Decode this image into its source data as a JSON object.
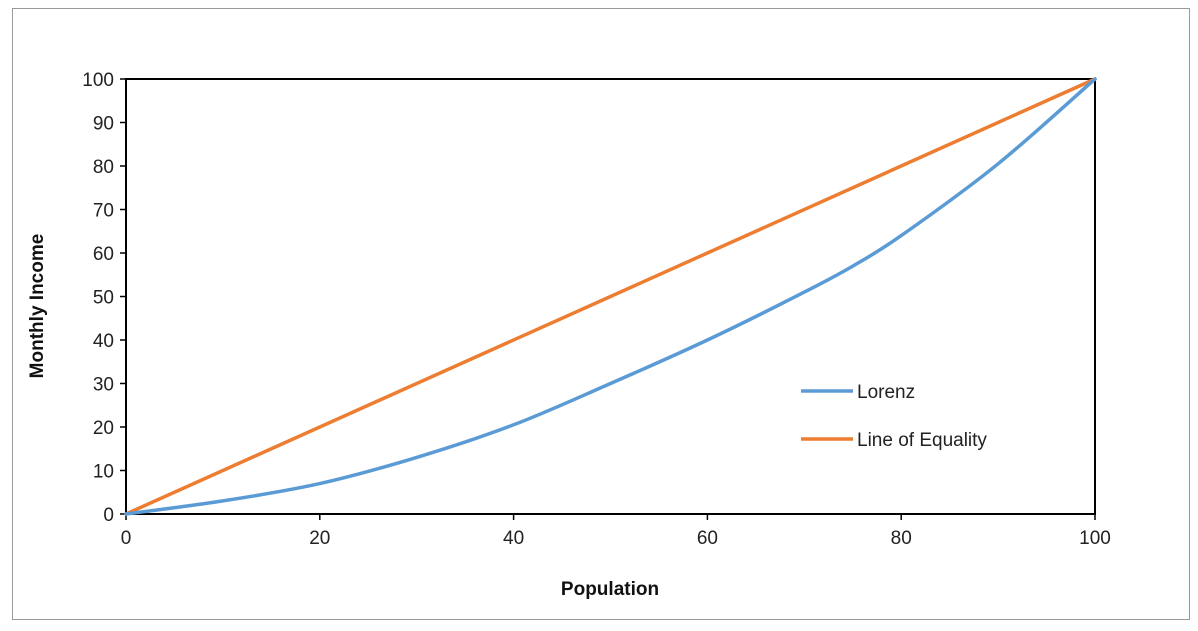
{
  "chart_data": {
    "type": "line",
    "title": "",
    "xlabel": "Population",
    "ylabel": "Monthly Income",
    "xlim": [
      0,
      100
    ],
    "ylim": [
      0,
      100
    ],
    "x_ticks": [
      0,
      20,
      40,
      60,
      80,
      100
    ],
    "y_ticks": [
      0,
      10,
      20,
      30,
      40,
      50,
      60,
      70,
      80,
      90,
      100
    ],
    "grid": false,
    "legend_position": "right",
    "series": [
      {
        "name": "Lorenz",
        "color": "#5b9bd5",
        "x": [
          0,
          10,
          20,
          30,
          40,
          50,
          60,
          70,
          75,
          80,
          90,
          100
        ],
        "y": [
          0,
          3,
          7,
          13,
          20.5,
          30,
          40,
          51,
          57,
          64,
          80.5,
          100
        ]
      },
      {
        "name": "Line of Equality",
        "color": "#ed7d31",
        "x": [
          0,
          100
        ],
        "y": [
          0,
          100
        ]
      }
    ]
  }
}
